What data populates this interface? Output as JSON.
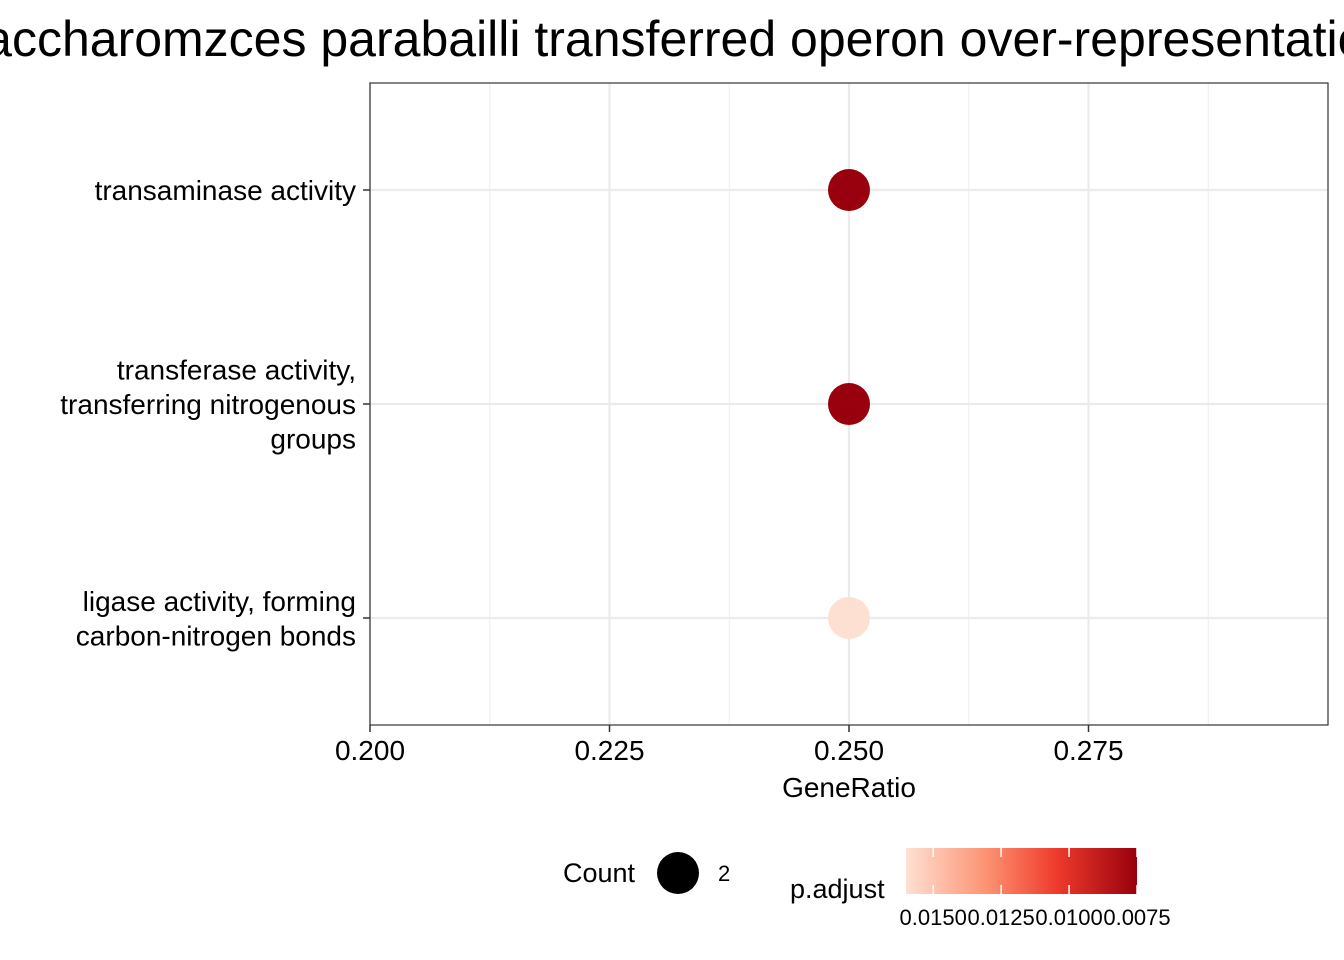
{
  "chart_data": {
    "type": "scatter",
    "title": "Saccharomzces parabailli transferred operon over-representation",
    "xlabel": "GeneRatio",
    "ylabel": "",
    "xlim": [
      0.2,
      0.3
    ],
    "x_ticks": [
      "0.200",
      "0.225",
      "0.250",
      "0.275"
    ],
    "x_tick_values": [
      0.2,
      0.225,
      0.25,
      0.275
    ],
    "grid": true,
    "categories": [
      [
        "transaminase activity"
      ],
      [
        "transferase activity,",
        "transferring nitrogenous",
        "groups"
      ],
      [
        "ligase activity, forming",
        "carbon-nitrogen bonds"
      ]
    ],
    "points": [
      {
        "x": 0.25,
        "count": 2,
        "p_adjust": 0.0075
      },
      {
        "x": 0.25,
        "count": 2,
        "p_adjust": 0.0075
      },
      {
        "x": 0.25,
        "count": 2,
        "p_adjust": 0.016
      }
    ],
    "legend": {
      "placement": "bottom",
      "size": {
        "title": "Count",
        "value_label": "2"
      },
      "color": {
        "title": "p.adjust",
        "range": [
          0.016,
          0.0075
        ],
        "ticks": [
          "0.0150",
          "0.0125",
          "0.0100",
          "0.0075"
        ],
        "tick_values": [
          0.015,
          0.0125,
          0.01,
          0.0075
        ],
        "colors": [
          "#fee0d2",
          "#fc9272",
          "#ef3b2c",
          "#99000d"
        ]
      }
    }
  }
}
